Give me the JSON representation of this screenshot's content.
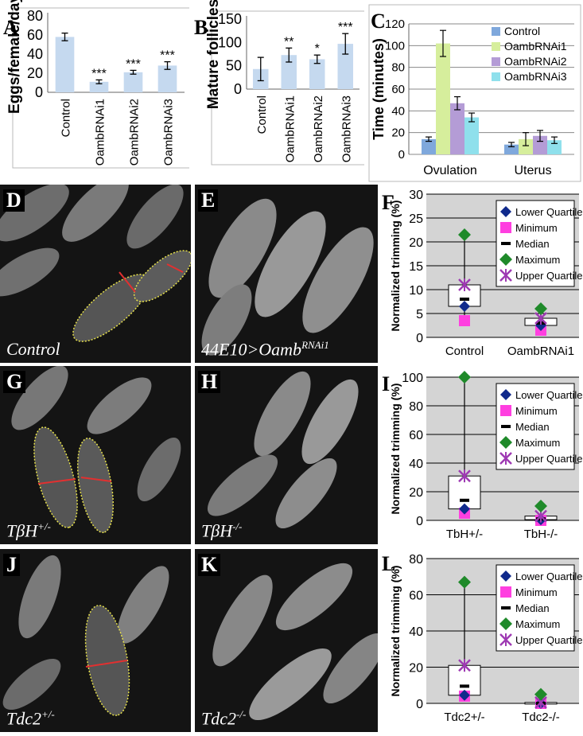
{
  "panels": {
    "A": {
      "letter": "A"
    },
    "B": {
      "letter": "B"
    },
    "C": {
      "letter": "C"
    },
    "D": {
      "letter": "D",
      "caption": "Control"
    },
    "E": {
      "letter": "E",
      "caption_main": "44E10>Oamb",
      "caption_sup": "RNAi1"
    },
    "F": {
      "letter": "F"
    },
    "G": {
      "letter": "G",
      "caption_main": "TβH",
      "caption_sup": "+/-"
    },
    "H": {
      "letter": "H",
      "caption_main": "TβH",
      "caption_sup": "-/-"
    },
    "I": {
      "letter": "I"
    },
    "J": {
      "letter": "J",
      "caption_main": "Tdc2",
      "caption_sup": "+/-"
    },
    "K": {
      "letter": "K",
      "caption_main": "Tdc2",
      "caption_sup": "-/-"
    },
    "L": {
      "letter": "L"
    }
  },
  "chart_data": [
    {
      "id": "A",
      "type": "bar",
      "ylabel": "Eggs/female/day",
      "ylim": [
        0,
        80
      ],
      "yticks": [
        0,
        20,
        40,
        60,
        80
      ],
      "categories": [
        "Control",
        "OambRNAi1",
        "OambRNAi2",
        "OambRNAi3"
      ],
      "values": [
        58,
        11,
        21,
        28
      ],
      "errors": [
        4,
        2,
        2,
        4
      ],
      "annotations": [
        "",
        "***",
        "***",
        "***"
      ],
      "colors": {
        "bar": "#c5d9ef"
      }
    },
    {
      "id": "B",
      "type": "bar",
      "ylabel": "Mature follicles",
      "ylim": [
        0,
        150
      ],
      "yticks": [
        0,
        50,
        100,
        150
      ],
      "categories": [
        "Control",
        "OambRNAi1",
        "OambRNAi2",
        "OambRNAi3"
      ],
      "values": [
        43,
        73,
        64,
        97
      ],
      "errors": [
        25,
        15,
        9,
        22
      ],
      "annotations": [
        "",
        "**",
        "*",
        "***"
      ],
      "colors": {
        "bar": "#c5d9ef"
      }
    },
    {
      "id": "C",
      "type": "bar",
      "ylabel": "Time (minutes)",
      "ylim": [
        0,
        120
      ],
      "yticks": [
        0,
        20,
        40,
        60,
        80,
        100,
        120
      ],
      "categories": [
        "Ovulation",
        "Uterus"
      ],
      "series": [
        {
          "name": "Control",
          "values": [
            14,
            9
          ],
          "errors": [
            2,
            2
          ],
          "color": "#7fa8dc"
        },
        {
          "name": "OambRNAi1",
          "values": [
            102,
            14
          ],
          "errors": [
            12,
            6
          ],
          "color": "#d6ee9c"
        },
        {
          "name": "OambRNAi2",
          "values": [
            47,
            17
          ],
          "errors": [
            6,
            5
          ],
          "color": "#b49cd6"
        },
        {
          "name": "OambRNAi3",
          "values": [
            34,
            13
          ],
          "errors": [
            4,
            3
          ],
          "color": "#8fe0ec"
        }
      ],
      "legend": "top-right"
    },
    {
      "id": "F",
      "type": "box",
      "ylabel": "Normalized trimming (%)",
      "ylim": [
        0,
        30
      ],
      "yticks": [
        0,
        5,
        10,
        15,
        20,
        25,
        30
      ],
      "categories": [
        "Control",
        "OambRNAi1"
      ],
      "boxes": [
        {
          "min": 3.5,
          "lower_quartile": 6.5,
          "median": 8,
          "upper_quartile": 11,
          "max": 21.5
        },
        {
          "min": 1.5,
          "lower_quartile": 2.5,
          "median": 3,
          "upper_quartile": 4,
          "max": 6
        }
      ],
      "legend_entries": [
        "Lower Quartile",
        "Minimum",
        "Median",
        "Maximum",
        "Upper Quartile"
      ]
    },
    {
      "id": "I",
      "type": "box",
      "ylabel": "Normalized trimming (%)",
      "ylim": [
        0,
        100
      ],
      "yticks": [
        0,
        20,
        40,
        60,
        80,
        100
      ],
      "categories": [
        "TbH+/-",
        "TbH-/-"
      ],
      "boxes": [
        {
          "min": 5,
          "lower_quartile": 8,
          "median": 14,
          "upper_quartile": 31,
          "max": 100
        },
        {
          "min": 0,
          "lower_quartile": 0.5,
          "median": 1,
          "upper_quartile": 3,
          "max": 10
        }
      ],
      "legend_entries": [
        "Lower Quartile",
        "Minimum",
        "Median",
        "Maximum",
        "Upper Quartile"
      ]
    },
    {
      "id": "L",
      "type": "box",
      "ylabel": "Normalized trimming (%)",
      "ylim": [
        0,
        80
      ],
      "yticks": [
        0,
        20,
        40,
        60,
        80
      ],
      "categories": [
        "Tdc2+/-",
        "Tdc2-/-"
      ],
      "boxes": [
        {
          "min": 4,
          "lower_quartile": 4.5,
          "median": 9.5,
          "upper_quartile": 21,
          "max": 67
        },
        {
          "min": 0,
          "lower_quartile": 0,
          "median": 0,
          "upper_quartile": 0.5,
          "max": 5
        }
      ],
      "legend_entries": [
        "Lower Quartile",
        "Minimum",
        "Median",
        "Maximum",
        "Upper Quartile"
      ]
    }
  ],
  "colors": {
    "plot_bg": "#d4d4d4",
    "lower_quartile": "#102a8c",
    "minimum": "#ff3fe0",
    "median": "#000000",
    "maximum": "#1f8a2a",
    "upper_quartile": "#9e3ab3",
    "outline": "#dashed-yellow",
    "cut_line": "#e23030"
  }
}
